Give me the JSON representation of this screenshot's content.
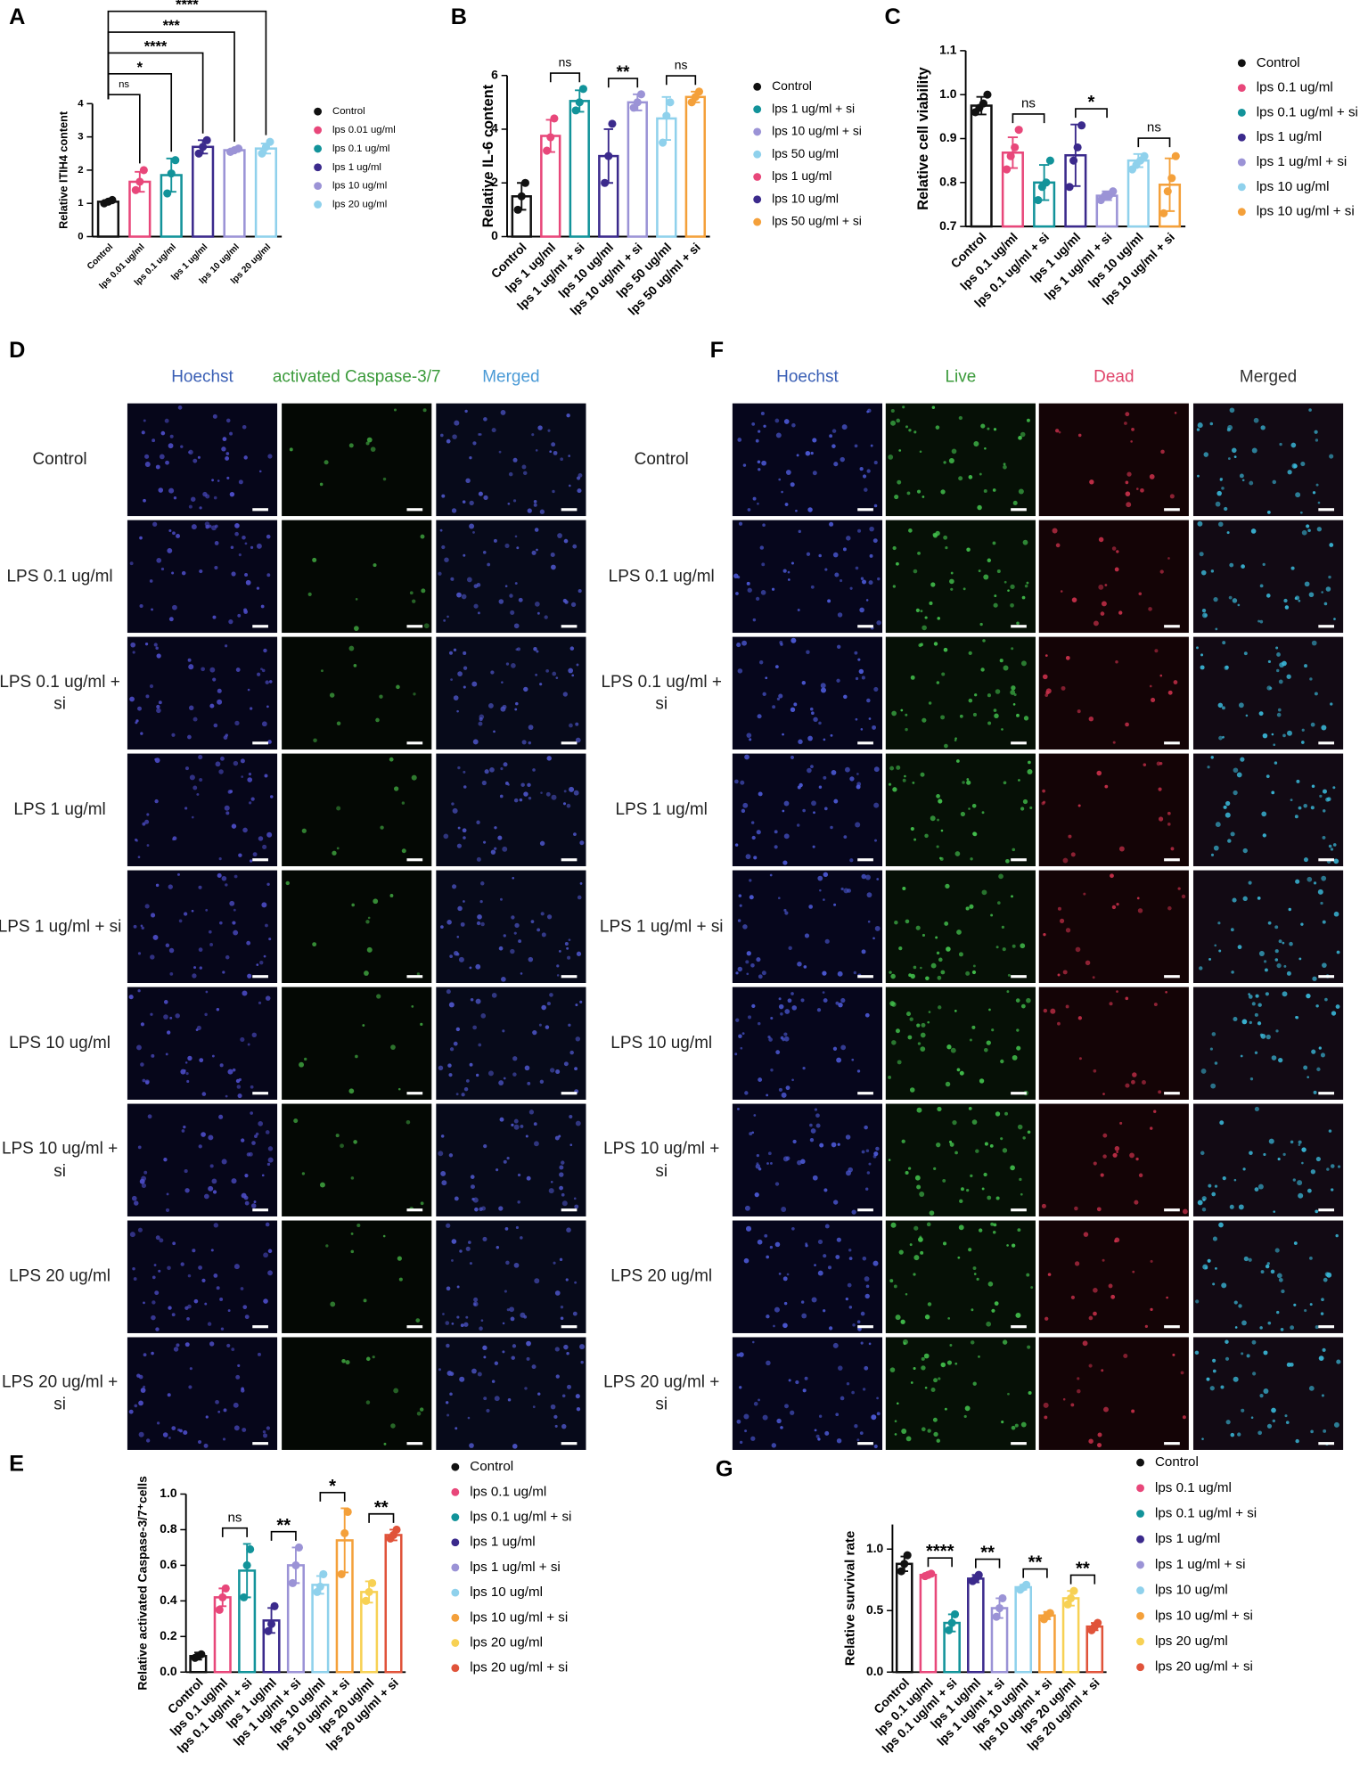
{
  "chart_data": [
    {
      "type": "bar",
      "panel": "A",
      "ylabel": "Relative ITIH4 content",
      "categories": [
        "Control",
        "lps 0.01 ug/ml",
        "lps 0.1 ug/ml",
        "lps 1 ug/ml",
        "lps 10 ug/ml",
        "lps 20 ug/ml"
      ],
      "colors": [
        "#111111",
        "#e8477a",
        "#12939a",
        "#3b2a8c",
        "#9b93d6",
        "#8fd1ec"
      ],
      "values": [
        1.05,
        1.65,
        1.85,
        2.7,
        2.6,
        2.65
      ],
      "errors": [
        0.05,
        0.3,
        0.5,
        0.2,
        0.05,
        0.15
      ],
      "points": [
        [
          1.0,
          1.05,
          1.1
        ],
        [
          1.4,
          1.65,
          2.0
        ],
        [
          1.3,
          1.9,
          2.3
        ],
        [
          2.5,
          2.7,
          2.9
        ],
        [
          2.55,
          2.6,
          2.65
        ],
        [
          2.5,
          2.7,
          2.85
        ]
      ],
      "ylim": [
        0,
        4
      ],
      "yticks": [
        0,
        1,
        2,
        3,
        4
      ],
      "comparisons": [
        {
          "between": [
            "Control",
            "lps 0.01 ug/ml"
          ],
          "label": "ns"
        },
        {
          "between": [
            "Control",
            "lps 0.1 ug/ml"
          ],
          "label": "*"
        },
        {
          "between": [
            "Control",
            "lps 1 ug/ml"
          ],
          "label": "****"
        },
        {
          "between": [
            "Control",
            "lps 10 ug/ml"
          ],
          "label": "***"
        },
        {
          "between": [
            "Control",
            "lps 20 ug/ml"
          ],
          "label": "****"
        }
      ],
      "legend": [
        {
          "name": "Control",
          "color": "#111111"
        },
        {
          "name": "lps 0.01 ug/ml",
          "color": "#e8477a"
        },
        {
          "name": "lps 0.1 ug/ml",
          "color": "#12939a"
        },
        {
          "name": "lps 1 ug/ml",
          "color": "#3b2a8c"
        },
        {
          "name": "lps 10 ug/ml",
          "color": "#9b93d6"
        },
        {
          "name": "lps 20 ug/ml",
          "color": "#8fd1ec"
        }
      ]
    },
    {
      "type": "bar",
      "panel": "B",
      "ylabel": "Relative IL-6 content",
      "categories": [
        "Control",
        "lps 1 ug/ml",
        "lps 1 ug/ml + si",
        "lps 10 ug/ml",
        "lps 10 ug/ml + si",
        "lps 50 ug/ml",
        "lps 50 ug/ml + si"
      ],
      "colors": [
        "#111111",
        "#e8477a",
        "#12939a",
        "#3b2a8c",
        "#9b93d6",
        "#8fd1ec",
        "#f4a03a"
      ],
      "values": [
        1.5,
        3.75,
        5.05,
        3.0,
        5.0,
        4.4,
        5.2
      ],
      "errors": [
        0.5,
        0.6,
        0.4,
        1.0,
        0.3,
        0.8,
        0.2
      ],
      "points": [
        [
          1.0,
          1.5,
          2.0
        ],
        [
          3.2,
          3.7,
          4.4
        ],
        [
          4.7,
          5.0,
          5.5
        ],
        [
          2.0,
          3.0,
          4.2
        ],
        [
          4.8,
          5.0,
          5.3
        ],
        [
          3.5,
          4.5,
          5.0
        ],
        [
          5.0,
          5.2,
          5.4
        ]
      ],
      "ylim": [
        0,
        6
      ],
      "yticks": [
        0,
        2,
        4,
        6
      ],
      "comparisons": [
        {
          "between": [
            "lps 1 ug/ml",
            "lps 1 ug/ml + si"
          ],
          "label": "ns"
        },
        {
          "between": [
            "lps 10 ug/ml",
            "lps 10 ug/ml + si"
          ],
          "label": "**"
        },
        {
          "between": [
            "lps 50 ug/ml",
            "lps 50 ug/ml + si"
          ],
          "label": "ns"
        }
      ],
      "legend": [
        {
          "name": "Control",
          "color": "#111111"
        },
        {
          "name": "lps 1 ug/ml + si",
          "color": "#12939a"
        },
        {
          "name": "lps 10 ug/ml + si",
          "color": "#9b93d6"
        },
        {
          "name": "lps 50 ug/ml",
          "color": "#8fd1ec"
        },
        {
          "name": "lps 1 ug/ml",
          "color": "#e8477a"
        },
        {
          "name": "lps 10 ug/ml",
          "color": "#3b2a8c"
        },
        {
          "name": "lps 50 ug/ml + si",
          "color": "#f4a03a"
        }
      ]
    },
    {
      "type": "bar",
      "panel": "C",
      "ylabel": "Relative cell viability",
      "categories": [
        "Control",
        "lps 0.1 ug/ml",
        "lps 0.1 ug/ml + si",
        "lps 1 ug/ml",
        "lps 1 ug/ml + si",
        "lps 10 ug/ml",
        "lps 10 ug/ml + si"
      ],
      "colors": [
        "#111111",
        "#e8477a",
        "#12939a",
        "#3b2a8c",
        "#9b93d6",
        "#8fd1ec",
        "#f4a03a"
      ],
      "values": [
        0.975,
        0.868,
        0.8,
        0.862,
        0.77,
        0.85,
        0.795
      ],
      "errors": [
        0.02,
        0.035,
        0.04,
        0.07,
        0.01,
        0.015,
        0.06
      ],
      "points": [
        [
          0.96,
          0.97,
          0.98,
          1.0
        ],
        [
          0.83,
          0.86,
          0.88,
          0.92
        ],
        [
          0.76,
          0.79,
          0.8,
          0.85
        ],
        [
          0.79,
          0.85,
          0.88,
          0.93
        ],
        [
          0.76,
          0.77,
          0.77,
          0.78
        ],
        [
          0.83,
          0.84,
          0.85,
          0.86
        ],
        [
          0.73,
          0.78,
          0.81,
          0.86
        ]
      ],
      "ylim": [
        0.7,
        1.1
      ],
      "yticks": [
        0.7,
        0.8,
        0.9,
        {
          "value": 1,
          "label": "1.0"
        },
        1.1
      ],
      "comparisons": [
        {
          "between": [
            "lps 0.1 ug/ml",
            "lps 0.1 ug/ml + si"
          ],
          "label": "ns"
        },
        {
          "between": [
            "lps 1 ug/ml",
            "lps 1 ug/ml + si"
          ],
          "label": "*"
        },
        {
          "between": [
            "lps 10 ug/ml",
            "lps 10 ug/ml + si"
          ],
          "label": "ns"
        }
      ],
      "legend": [
        {
          "name": "Control",
          "color": "#111111"
        },
        {
          "name": "lps 0.1 ug/ml",
          "color": "#e8477a"
        },
        {
          "name": "lps 0.1 ug/ml + si",
          "color": "#12939a"
        },
        {
          "name": "lps 1 ug/ml",
          "color": "#3b2a8c"
        },
        {
          "name": "lps 1 ug/ml + si",
          "color": "#9b93d6"
        },
        {
          "name": "lps 10 ug/ml",
          "color": "#8fd1ec"
        },
        {
          "name": "lps 10 ug/ml + si",
          "color": "#f4a03a"
        }
      ]
    },
    {
      "type": "bar",
      "panel": "E",
      "ylabel": "Relative activated Caspase-3/7⁺cells",
      "categories": [
        "Control",
        "lps 0.1 ug/ml",
        "lps 0.1 ug/ml + si",
        "lps 1 ug/ml",
        "lps 1 ug/ml + si",
        "lps 10 ug/ml",
        "lps 10 ug/ml + si",
        "lps 20 ug/ml",
        "lps 20 ug/ml + si"
      ],
      "colors": [
        "#111111",
        "#e8477a",
        "#12939a",
        "#3b2a8c",
        "#9b93d6",
        "#8fd1ec",
        "#f4a03a",
        "#f7d154",
        "#e0533a"
      ],
      "values": [
        0.09,
        0.42,
        0.57,
        0.29,
        0.6,
        0.49,
        0.74,
        0.45,
        0.77
      ],
      "errors": [
        0.02,
        0.05,
        0.15,
        0.07,
        0.1,
        0.05,
        0.18,
        0.06,
        0.03
      ],
      "points": [
        [
          0.08,
          0.09,
          0.1
        ],
        [
          0.35,
          0.42,
          0.47
        ],
        [
          0.42,
          0.6,
          0.69
        ],
        [
          0.23,
          0.27,
          0.37
        ],
        [
          0.5,
          0.6,
          0.7
        ],
        [
          0.45,
          0.48,
          0.55
        ],
        [
          0.55,
          0.78,
          0.9
        ],
        [
          0.4,
          0.45,
          0.5
        ],
        [
          0.75,
          0.77,
          0.8
        ]
      ],
      "ylim": [
        0,
        1
      ],
      "yticks": [
        {
          "value": 0,
          "label": "0.0"
        },
        0.2,
        0.4,
        0.6,
        0.8,
        {
          "value": 1,
          "label": "1.0"
        }
      ],
      "comparisons": [
        {
          "between": [
            "lps 0.1 ug/ml",
            "lps 0.1 ug/ml + si"
          ],
          "label": "ns"
        },
        {
          "between": [
            "lps 1 ug/ml",
            "lps 1 ug/ml + si"
          ],
          "label": "**"
        },
        {
          "between": [
            "lps 10 ug/ml",
            "lps 10 ug/ml + si"
          ],
          "label": "*"
        },
        {
          "between": [
            "lps 20 ug/ml",
            "lps 20 ug/ml + si"
          ],
          "label": "**"
        }
      ],
      "legend": [
        {
          "name": "Control",
          "color": "#111111"
        },
        {
          "name": "lps 0.1 ug/ml",
          "color": "#e8477a"
        },
        {
          "name": "lps 0.1 ug/ml + si",
          "color": "#12939a"
        },
        {
          "name": "lps 1 ug/ml",
          "color": "#3b2a8c"
        },
        {
          "name": "lps 1 ug/ml + si",
          "color": "#9b93d6"
        },
        {
          "name": "lps 10 ug/ml",
          "color": "#8fd1ec"
        },
        {
          "name": "lps 10 ug/ml + si",
          "color": "#f4a03a"
        },
        {
          "name": "lps 20 ug/ml",
          "color": "#f7d154"
        },
        {
          "name": "lps 20 ug/ml + si",
          "color": "#e0533a"
        }
      ]
    },
    {
      "type": "bar",
      "panel": "G",
      "ylabel": "Relative survival rate",
      "categories": [
        "Control",
        "lps 0.1 ug/ml",
        "lps 0.1 ug/ml + si",
        "lps 1 ug/ml",
        "lps 1 ug/ml + si",
        "lps 10 ug/ml",
        "lps 10 ug/ml + si",
        "lps 20 ug/ml",
        "lps 20 ug/ml + si"
      ],
      "colors": [
        "#111111",
        "#e8477a",
        "#12939a",
        "#3b2a8c",
        "#9b93d6",
        "#8fd1ec",
        "#f4a03a",
        "#f7d154",
        "#e0533a"
      ],
      "values": [
        0.88,
        0.79,
        0.4,
        0.76,
        0.52,
        0.69,
        0.46,
        0.6,
        0.37
      ],
      "errors": [
        0.06,
        0.01,
        0.07,
        0.03,
        0.08,
        0.02,
        0.03,
        0.06,
        0.03
      ],
      "points": [
        [
          0.82,
          0.88,
          0.95
        ],
        [
          0.78,
          0.79,
          0.8
        ],
        [
          0.34,
          0.4,
          0.47
        ],
        [
          0.74,
          0.76,
          0.79
        ],
        [
          0.45,
          0.52,
          0.6
        ],
        [
          0.67,
          0.69,
          0.71
        ],
        [
          0.43,
          0.46,
          0.48
        ],
        [
          0.55,
          0.6,
          0.66
        ],
        [
          0.34,
          0.37,
          0.4
        ]
      ],
      "ylim": [
        0,
        1.2
      ],
      "yticks": [
        {
          "value": 0,
          "label": "0.0"
        },
        0.5,
        {
          "value": 1,
          "label": "1.0"
        }
      ],
      "comparisons": [
        {
          "between": [
            "lps 0.1 ug/ml",
            "lps 0.1 ug/ml + si"
          ],
          "label": "****"
        },
        {
          "between": [
            "lps 1 ug/ml",
            "lps 1 ug/ml + si"
          ],
          "label": "**"
        },
        {
          "between": [
            "lps 10 ug/ml",
            "lps 10 ug/ml + si"
          ],
          "label": "**"
        },
        {
          "between": [
            "lps 20 ug/ml",
            "lps 20 ug/ml + si"
          ],
          "label": "**"
        }
      ],
      "legend": [
        {
          "name": "Control",
          "color": "#111111"
        },
        {
          "name": "lps 0.1 ug/ml",
          "color": "#e8477a"
        },
        {
          "name": "lps 0.1 ug/ml + si",
          "color": "#12939a"
        },
        {
          "name": "lps 1 ug/ml",
          "color": "#3b2a8c"
        },
        {
          "name": "lps 1 ug/ml + si",
          "color": "#9b93d6"
        },
        {
          "name": "lps 10 ug/ml",
          "color": "#8fd1ec"
        },
        {
          "name": "lps 10 ug/ml + si",
          "color": "#f4a03a"
        },
        {
          "name": "lps 20 ug/ml",
          "color": "#f7d154"
        },
        {
          "name": "lps 20 ug/ml + si",
          "color": "#e0533a"
        }
      ]
    }
  ],
  "image_panels": [
    {
      "panel": "D",
      "columns": [
        "Hoechst",
        "activated Caspase-3/7",
        "Merged"
      ],
      "rows": [
        "Control",
        "LPS 0.1 ug/ml",
        "LPS 0.1 ug/ml + si",
        "LPS 1 ug/ml",
        "LPS 1 ug/ml + si",
        "LPS 10 ug/ml",
        "LPS 10 ug/ml + si",
        "LPS 20 ug/ml",
        "LPS 20 ug/ml + si"
      ]
    },
    {
      "panel": "F",
      "columns": [
        "Hoechst",
        "Live",
        "Dead",
        "Merged"
      ],
      "rows": [
        "Control",
        "LPS 0.1 ug/ml",
        "LPS 0.1 ug/ml + si",
        "LPS 1 ug/ml",
        "LPS 1 ug/ml + si",
        "LPS 10 ug/ml",
        "LPS 10 ug/ml + si",
        "LPS 20 ug/ml",
        "LPS 20 ug/ml + si"
      ]
    }
  ]
}
